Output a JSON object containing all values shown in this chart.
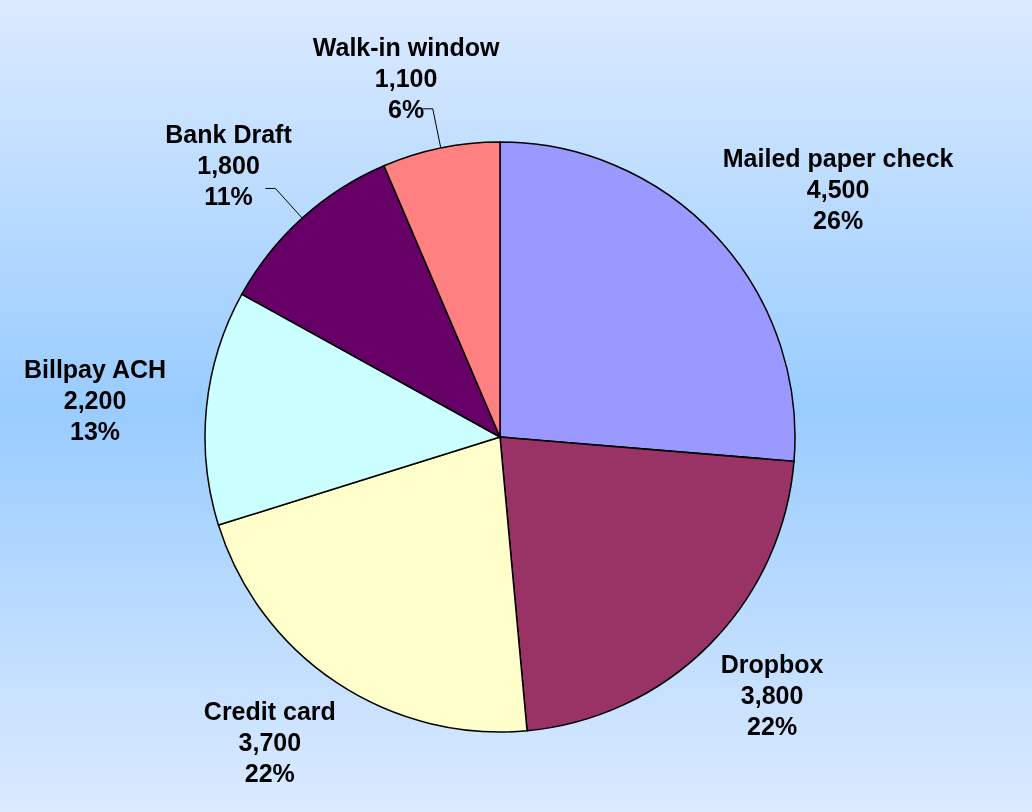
{
  "chart_data": {
    "type": "pie",
    "categories": [
      "Mailed paper check",
      "Dropbox",
      "Credit card",
      "Billpay ACH",
      "Bank Draft",
      "Walk-in window"
    ],
    "values": [
      4500,
      3800,
      3700,
      2200,
      1800,
      1100
    ],
    "colors": [
      "#9999ff",
      "#993366",
      "#ffffcc",
      "#ccffff",
      "#660066",
      "#ff8080"
    ],
    "value_labels": [
      "4,500\n26%",
      "3,800\n22%",
      "3,700\n22%",
      "2,200\n13%",
      "1,800\n11%",
      "1,100\n6%"
    ]
  }
}
